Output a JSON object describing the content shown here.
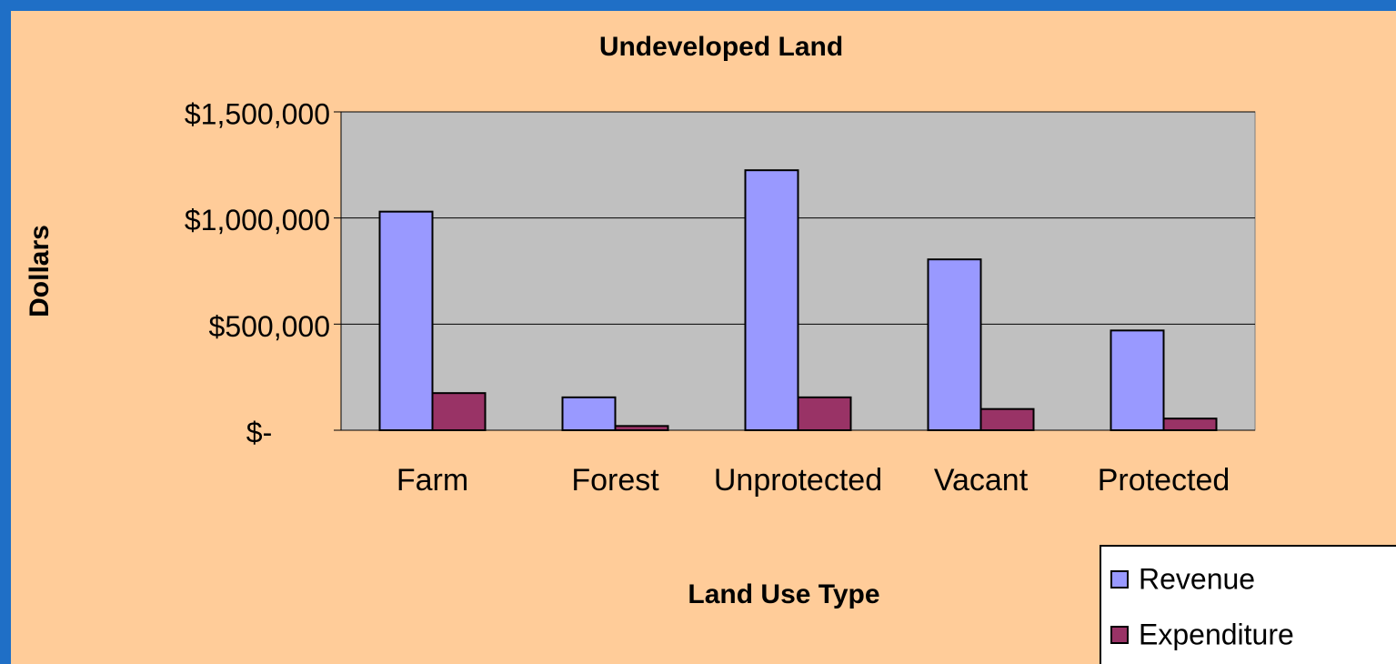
{
  "chart_data": {
    "type": "bar",
    "title": "Undeveloped Land",
    "x_label": "Land Use Type",
    "y_label": "Dollars",
    "categories": [
      "Farm",
      "Forest",
      "Unprotected",
      "Vacant",
      "Protected"
    ],
    "series": [
      {
        "name": "Revenue",
        "color": "#9999ff",
        "values": [
          1030000,
          155000,
          1225000,
          805000,
          470000
        ]
      },
      {
        "name": "Expenditure",
        "color": "#993366",
        "values": [
          175000,
          20000,
          155000,
          100000,
          55000
        ]
      }
    ],
    "ylim": [
      0,
      1500000
    ],
    "yticks": [
      {
        "value": 0,
        "label": "$-"
      },
      {
        "value": 500000,
        "label": "$500,000"
      },
      {
        "value": 1000000,
        "label": "$1,000,000"
      },
      {
        "value": 1500000,
        "label": "$1,500,000"
      }
    ],
    "grid": true,
    "legend": "bottom-right",
    "plot_color": "#c0c0c0"
  }
}
